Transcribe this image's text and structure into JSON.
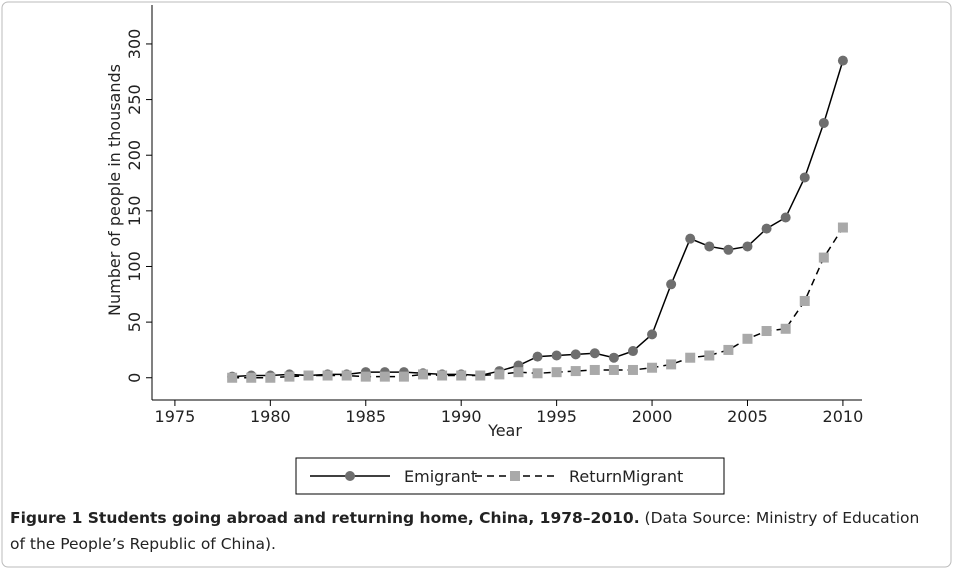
{
  "chart_data": {
    "type": "line",
    "x": [
      1978,
      1979,
      1980,
      1981,
      1982,
      1983,
      1984,
      1985,
      1986,
      1987,
      1988,
      1989,
      1990,
      1991,
      1992,
      1993,
      1994,
      1995,
      1996,
      1997,
      1998,
      1999,
      2000,
      2001,
      2002,
      2003,
      2004,
      2005,
      2006,
      2007,
      2008,
      2009,
      2010
    ],
    "series": [
      {
        "name": "Emigrant",
        "color": "#6e6e6e",
        "line_color": "#000000",
        "dash": false,
        "marker": "circle",
        "values": [
          1,
          2,
          2,
          3,
          2,
          3,
          3,
          5,
          5,
          5,
          4,
          3,
          3,
          2,
          6,
          11,
          19,
          20,
          21,
          22,
          18,
          24,
          39,
          84,
          125,
          118,
          115,
          118,
          134,
          144,
          180,
          229,
          285
        ]
      },
      {
        "name": "ReturnMigrant",
        "color": "#a9a9a9",
        "line_color": "#000000",
        "dash": true,
        "marker": "square",
        "values": [
          0,
          0,
          0,
          1,
          2,
          2,
          2,
          1,
          1,
          1,
          3,
          2,
          2,
          2,
          3,
          5,
          4,
          5,
          6,
          7,
          7,
          7,
          9,
          12,
          18,
          20,
          25,
          35,
          42,
          44,
          69,
          108,
          135
        ]
      }
    ],
    "xlabel": "Year",
    "ylabel": "Number of people in thousands",
    "xlim": [
      1973.8,
      2011
    ],
    "xticks": [
      1975,
      1980,
      1985,
      1990,
      1995,
      2000,
      2005,
      2010
    ],
    "ylim": [
      -20,
      335
    ],
    "yticks": [
      0,
      50,
      100,
      150,
      200,
      250,
      300
    ],
    "grid": false,
    "legend": "bottom"
  },
  "caption": {
    "label": "Figure 1 Students going abroad and returning home, China, 1978–2010.",
    "text": "(Data Source: Ministry of Education of the People’s Republic of China)."
  }
}
